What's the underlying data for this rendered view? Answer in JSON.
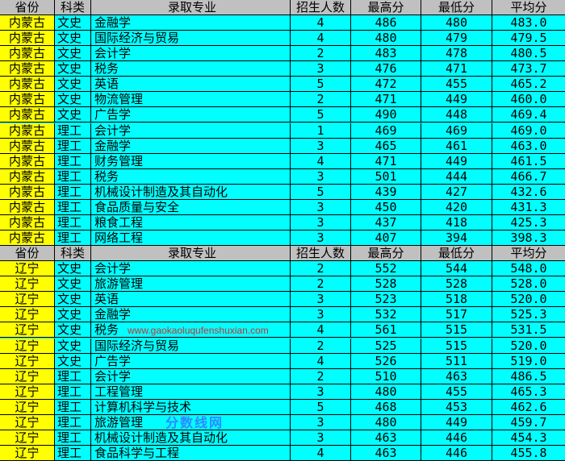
{
  "headers": [
    "省份",
    "科类",
    "录取专业",
    "招生人数",
    "最高分",
    "最低分",
    "平均分"
  ],
  "sections": [
    {
      "rows": [
        [
          "内蒙古",
          "文史",
          "金融学",
          "4",
          "486",
          "480",
          "483.0"
        ],
        [
          "内蒙古",
          "文史",
          "国际经济与贸易",
          "4",
          "480",
          "479",
          "479.5"
        ],
        [
          "内蒙古",
          "文史",
          "会计学",
          "2",
          "483",
          "478",
          "480.5"
        ],
        [
          "内蒙古",
          "文史",
          "税务",
          "3",
          "476",
          "471",
          "473.7"
        ],
        [
          "内蒙古",
          "文史",
          "英语",
          "5",
          "472",
          "455",
          "465.2"
        ],
        [
          "内蒙古",
          "文史",
          "物流管理",
          "2",
          "471",
          "449",
          "460.0"
        ],
        [
          "内蒙古",
          "文史",
          "广告学",
          "5",
          "490",
          "448",
          "469.4"
        ],
        [
          "内蒙古",
          "理工",
          "会计学",
          "1",
          "469",
          "469",
          "469.0"
        ],
        [
          "内蒙古",
          "理工",
          "金融学",
          "3",
          "465",
          "461",
          "463.0"
        ],
        [
          "内蒙古",
          "理工",
          "财务管理",
          "4",
          "471",
          "449",
          "461.5"
        ],
        [
          "内蒙古",
          "理工",
          "税务",
          "3",
          "501",
          "444",
          "466.7"
        ],
        [
          "内蒙古",
          "理工",
          "机械设计制造及其自动化",
          "5",
          "439",
          "427",
          "432.6"
        ],
        [
          "内蒙古",
          "理工",
          "食品质量与安全",
          "3",
          "450",
          "420",
          "431.3"
        ],
        [
          "内蒙古",
          "理工",
          "粮食工程",
          "3",
          "437",
          "418",
          "425.3"
        ],
        [
          "内蒙古",
          "理工",
          "网络工程",
          "3",
          "407",
          "394",
          "398.3"
        ]
      ]
    },
    {
      "rows": [
        [
          "辽宁",
          "文史",
          "会计学",
          "2",
          "552",
          "544",
          "548.0"
        ],
        [
          "辽宁",
          "文史",
          "旅游管理",
          "2",
          "528",
          "528",
          "528.0"
        ],
        [
          "辽宁",
          "文史",
          "英语",
          "3",
          "523",
          "518",
          "520.0"
        ],
        [
          "辽宁",
          "文史",
          "金融学",
          "3",
          "532",
          "517",
          "525.3"
        ],
        [
          "辽宁",
          "文史",
          "税务",
          "4",
          "561",
          "515",
          "531.5"
        ],
        [
          "辽宁",
          "文史",
          "国际经济与贸易",
          "2",
          "525",
          "515",
          "520.0"
        ],
        [
          "辽宁",
          "文史",
          "广告学",
          "4",
          "526",
          "511",
          "519.0"
        ],
        [
          "辽宁",
          "理工",
          "会计学",
          "2",
          "510",
          "463",
          "486.5"
        ],
        [
          "辽宁",
          "理工",
          "工程管理",
          "3",
          "480",
          "455",
          "465.3"
        ],
        [
          "辽宁",
          "理工",
          "计算机科学与技术",
          "5",
          "468",
          "453",
          "462.6"
        ],
        [
          "辽宁",
          "理工",
          "旅游管理",
          "3",
          "480",
          "449",
          "459.7"
        ],
        [
          "辽宁",
          "理工",
          "机械设计制造及其自动化",
          "3",
          "463",
          "446",
          "454.3"
        ],
        [
          "辽宁",
          "理工",
          "食品科学与工程",
          "4",
          "463",
          "446",
          "455.8"
        ]
      ]
    }
  ],
  "watermark": {
    "title": "分数线网",
    "url": "www.gaokaoluqufenshuxian.com"
  },
  "colors": {
    "province_bg": "#ffff00",
    "row_bg": "#00ffff",
    "header_bg": "#c0c0c0"
  }
}
